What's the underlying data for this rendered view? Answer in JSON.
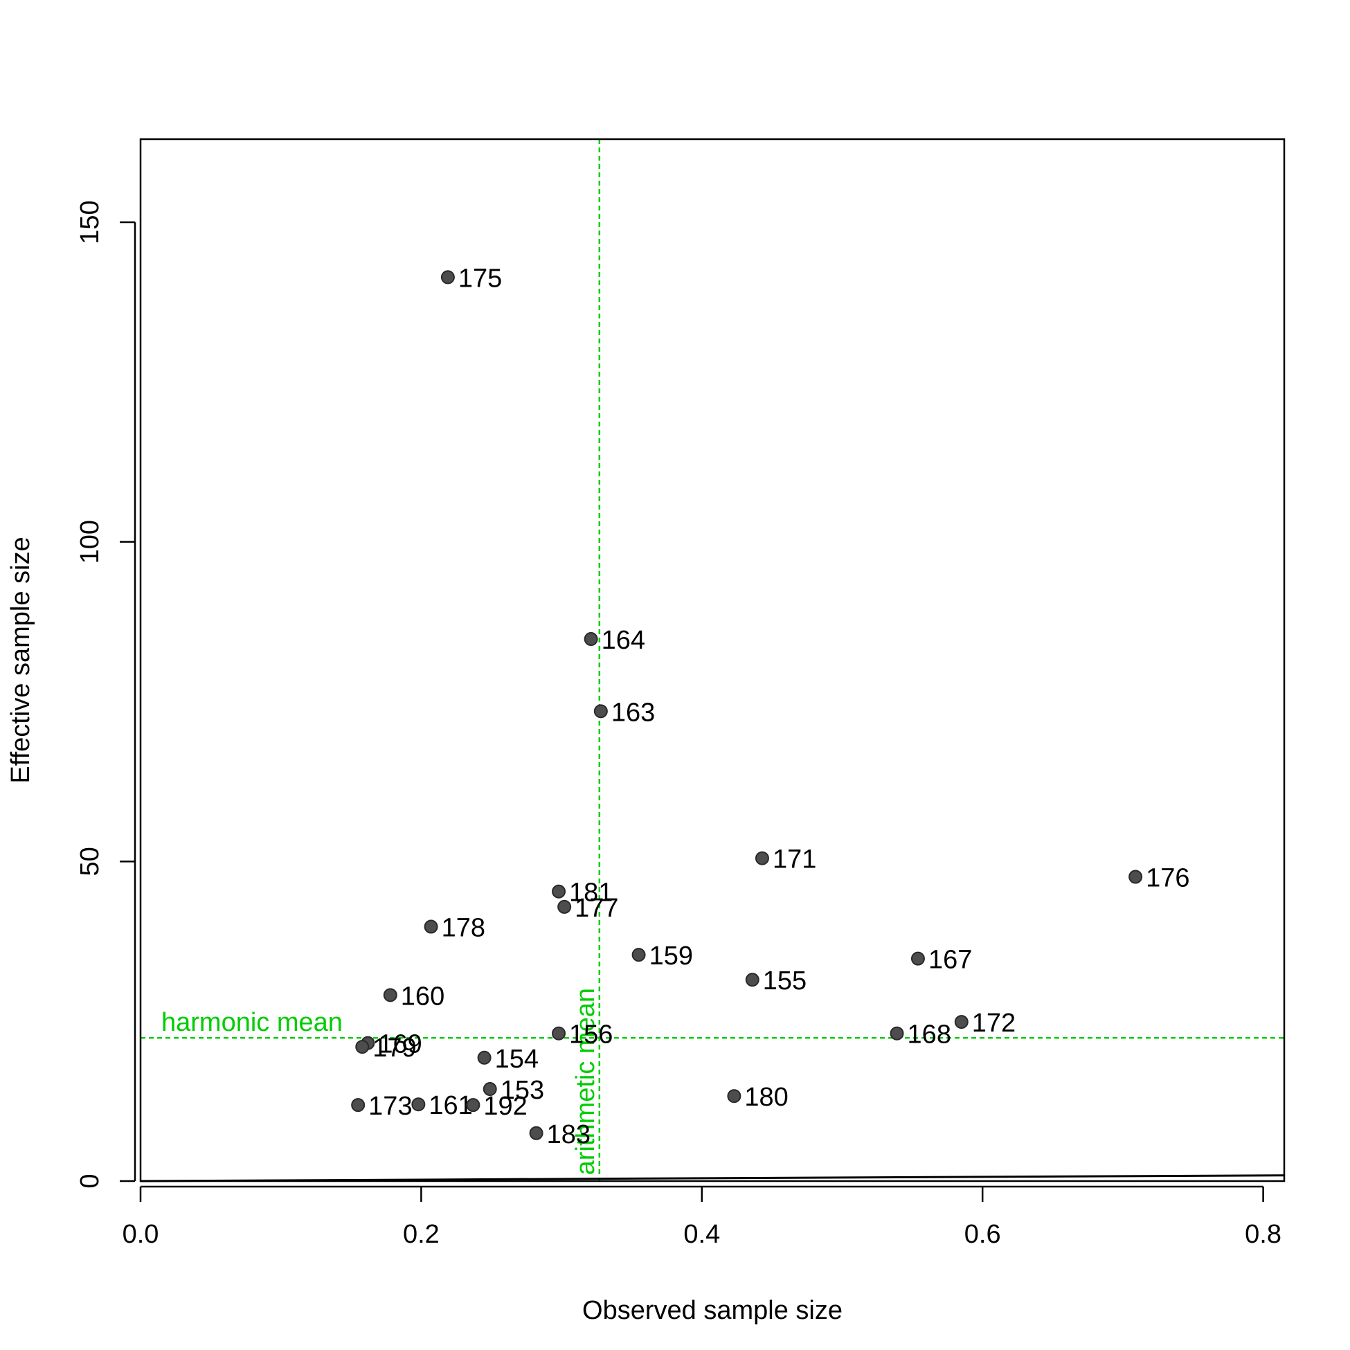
{
  "chart_data": {
    "type": "scatter",
    "xlabel": "Observed sample size",
    "ylabel": "Effective sample size",
    "xlim": [
      0,
      0.815
    ],
    "ylim": [
      0,
      163
    ],
    "x_ticks": [
      {
        "value": 0.0,
        "label": "0.0"
      },
      {
        "value": 0.2,
        "label": "0.2"
      },
      {
        "value": 0.4,
        "label": "0.4"
      },
      {
        "value": 0.6,
        "label": "0.6"
      },
      {
        "value": 0.8,
        "label": "0.8"
      }
    ],
    "y_ticks": [
      {
        "value": 0,
        "label": "0"
      },
      {
        "value": 50,
        "label": "50"
      },
      {
        "value": 100,
        "label": "100"
      },
      {
        "value": 150,
        "label": "150"
      }
    ],
    "points": [
      {
        "label": "175",
        "x": 0.219,
        "y": 141.4
      },
      {
        "label": "164",
        "x": 0.321,
        "y": 84.8
      },
      {
        "label": "163",
        "x": 0.328,
        "y": 73.5
      },
      {
        "label": "171",
        "x": 0.443,
        "y": 50.5
      },
      {
        "label": "176",
        "x": 0.709,
        "y": 47.6
      },
      {
        "label": "181",
        "x": 0.298,
        "y": 45.3
      },
      {
        "label": "177",
        "x": 0.302,
        "y": 42.9
      },
      {
        "label": "178",
        "x": 0.207,
        "y": 39.8
      },
      {
        "label": "159",
        "x": 0.355,
        "y": 35.4
      },
      {
        "label": "167",
        "x": 0.554,
        "y": 34.8
      },
      {
        "label": "155",
        "x": 0.436,
        "y": 31.5
      },
      {
        "label": "160",
        "x": 0.178,
        "y": 29.1
      },
      {
        "label": "172",
        "x": 0.585,
        "y": 24.9
      },
      {
        "label": "156",
        "x": 0.298,
        "y": 23.1
      },
      {
        "label": "168",
        "x": 0.539,
        "y": 23.1
      },
      {
        "label": "169",
        "x": 0.162,
        "y": 21.6
      },
      {
        "label": "179",
        "x": 0.158,
        "y": 21.0
      },
      {
        "label": "154",
        "x": 0.245,
        "y": 19.3
      },
      {
        "label": "153",
        "x": 0.249,
        "y": 14.4
      },
      {
        "label": "180",
        "x": 0.423,
        "y": 13.3
      },
      {
        "label": "173",
        "x": 0.155,
        "y": 11.9
      },
      {
        "label": "161",
        "x": 0.198,
        "y": 12.0
      },
      {
        "label": "192",
        "x": 0.237,
        "y": 11.9
      },
      {
        "label": "183",
        "x": 0.282,
        "y": 7.5
      }
    ],
    "reference_lines": {
      "arithmetic_mean": {
        "x": 0.327,
        "label": "arithmetic mean",
        "color": "#00cc00"
      },
      "harmonic_mean": {
        "y": 22.4,
        "label": "harmonic mean",
        "color": "#00cc00"
      }
    },
    "baseline": {
      "x0": 0.0,
      "y0": 0.0,
      "x1": 0.815,
      "y1": 0.9
    },
    "point_color": "#4d4d4d",
    "grid": false,
    "legend": "none"
  }
}
